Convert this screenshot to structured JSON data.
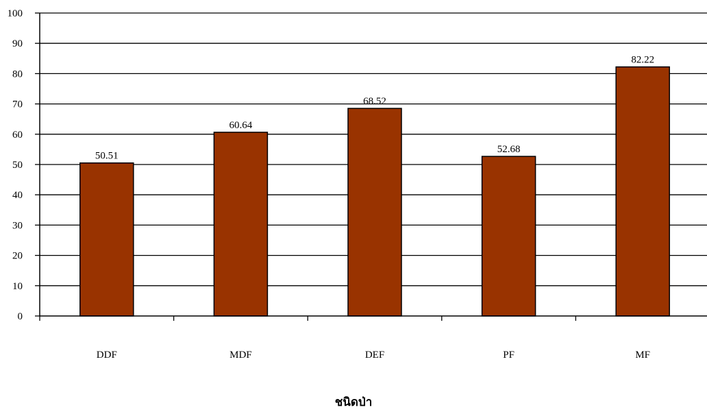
{
  "chart_data": {
    "type": "bar",
    "categories": [
      "DDF",
      "MDF",
      "DEF",
      "PF",
      "MF"
    ],
    "values": [
      50.51,
      60.64,
      68.52,
      52.68,
      82.22
    ],
    "data_labels": [
      "50.51",
      "60.64",
      "68.52",
      "52.68",
      "82.22"
    ],
    "xlabel": "ชนิดป่า",
    "ylabel": "",
    "ylim": [
      0,
      100
    ],
    "yticks": [
      0,
      10,
      20,
      30,
      40,
      50,
      60,
      70,
      80,
      90,
      100
    ],
    "grid": true,
    "legend": "none",
    "colors": {
      "bar_fill": "#993300",
      "bar_stroke": "#000000",
      "grid": "#000000",
      "axis": "#000000"
    }
  }
}
